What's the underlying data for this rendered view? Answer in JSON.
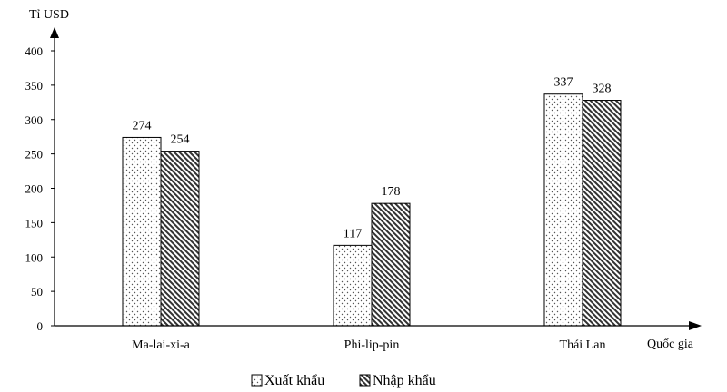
{
  "chart_data": {
    "type": "bar",
    "title": "",
    "ylabel": "Tỉ USD",
    "xlabel": "Quốc gia",
    "ylim": [
      0,
      400
    ],
    "yticks": [
      0,
      50,
      100,
      150,
      200,
      250,
      300,
      350,
      400
    ],
    "categories": [
      "Ma-lai-xi-a",
      "Phi-lip-pin",
      "Thái Lan"
    ],
    "series": [
      {
        "name": "Xuất khẩu",
        "values": [
          274,
          117,
          337
        ],
        "pattern": "dots"
      },
      {
        "name": "Nhập khẩu",
        "values": [
          254,
          178,
          328
        ],
        "pattern": "diagonal-hatch"
      }
    ],
    "grid": false,
    "legend": "bottom-center",
    "colors": {
      "axis": "#000000",
      "bar_fill": "#ffffff",
      "pattern": "#333333"
    }
  }
}
